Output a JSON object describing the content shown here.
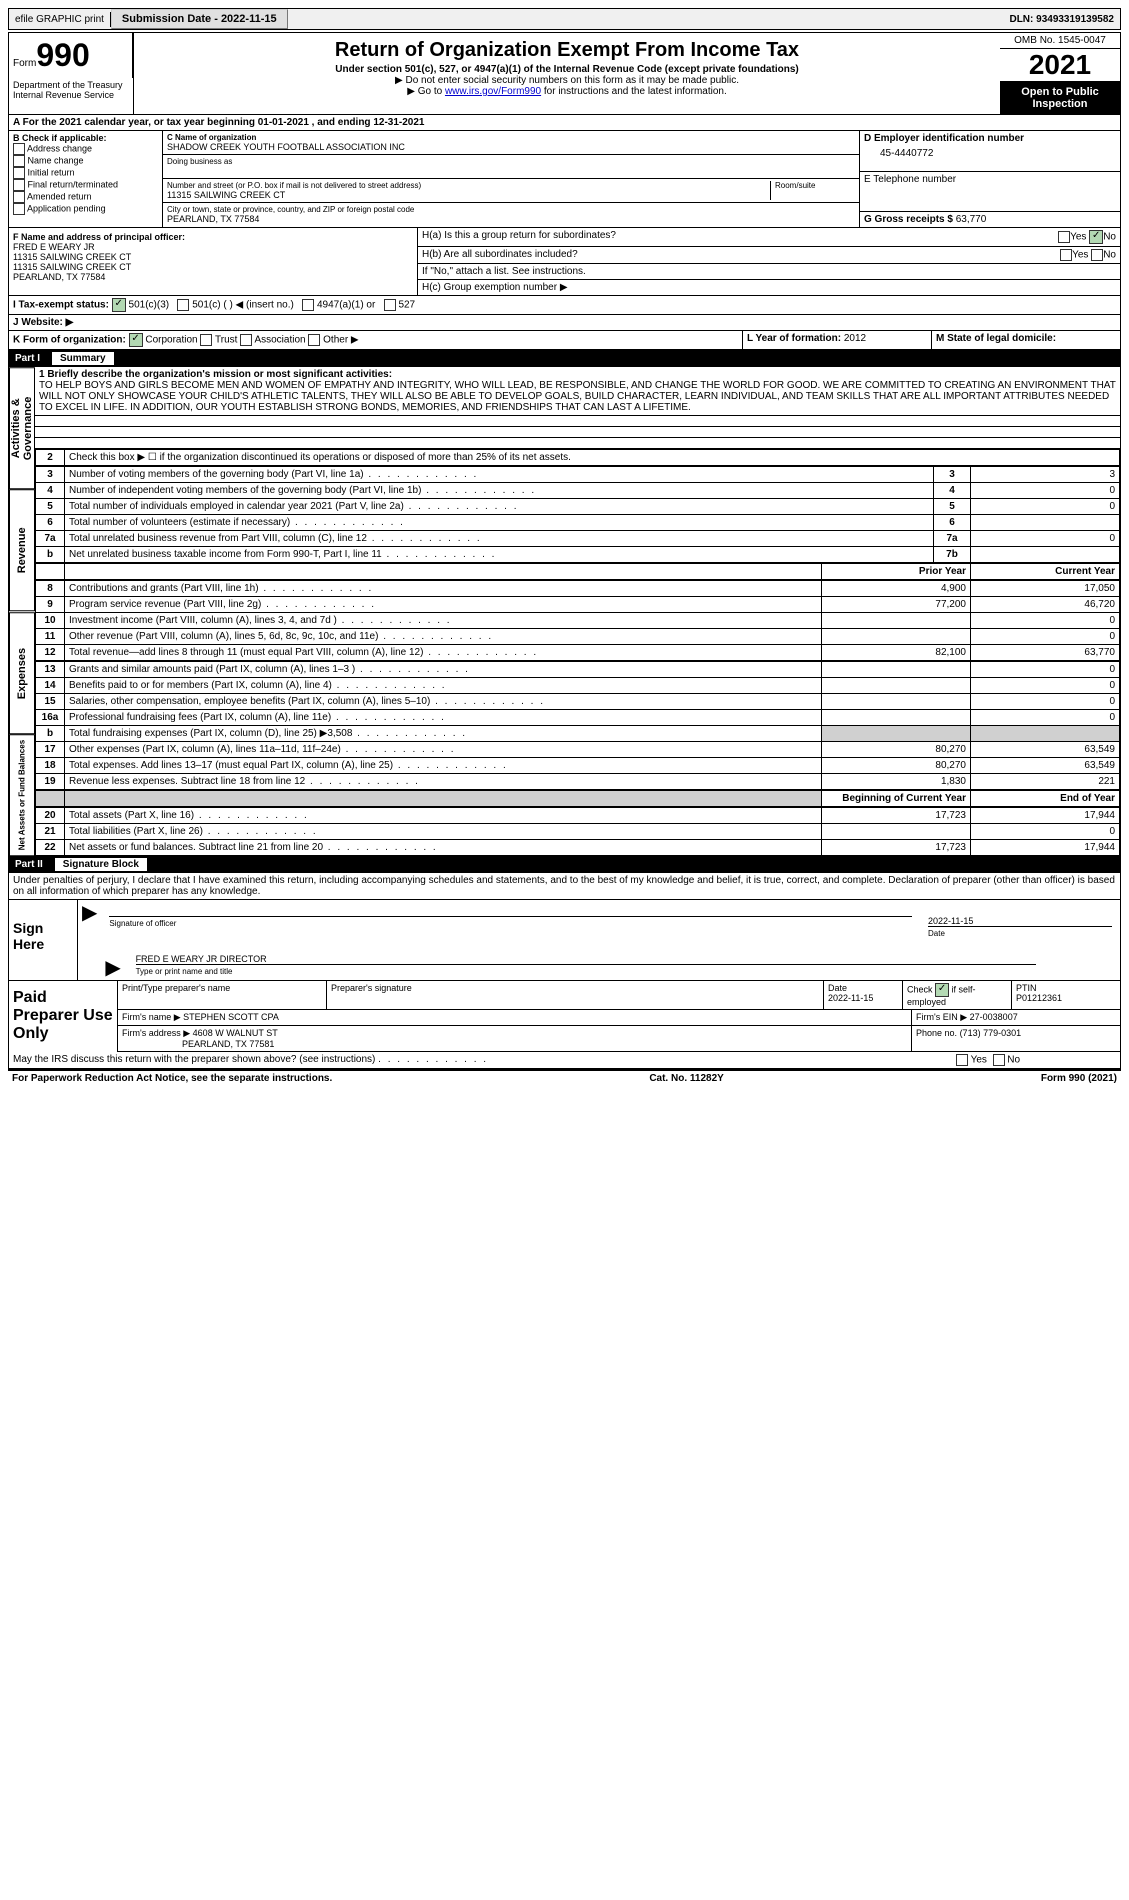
{
  "topbar": {
    "efile": "efile GRAPHIC print",
    "submission": "Submission Date - 2022-11-15",
    "dln": "DLN: 93493319139582"
  },
  "header": {
    "form_word": "Form",
    "form_num": "990",
    "dept": "Department of the Treasury\nInternal Revenue Service",
    "title": "Return of Organization Exempt From Income Tax",
    "subtitle": "Under section 501(c), 527, or 4947(a)(1) of the Internal Revenue Code (except private foundations)",
    "arrow1": "▶ Do not enter social security numbers on this form as it may be made public.",
    "arrow2_pre": "▶ Go to ",
    "arrow2_link": "www.irs.gov/Form990",
    "arrow2_post": " for instructions and the latest information.",
    "omb": "OMB No. 1545-0047",
    "year": "2021",
    "inspection": "Open to Public Inspection"
  },
  "lineA": "A For the 2021 calendar year, or tax year beginning 01-01-2021   , and ending 12-31-2021",
  "sectionB": {
    "label": "B Check if applicable:",
    "items": [
      "Address change",
      "Name change",
      "Initial return",
      "Final return/terminated",
      "Amended return",
      "Application pending"
    ]
  },
  "sectionC": {
    "name_label": "C Name of organization",
    "name": "SHADOW CREEK YOUTH FOOTBALL ASSOCIATION INC",
    "dba_label": "Doing business as",
    "addr_label": "Number and street (or P.O. box if mail is not delivered to street address)",
    "addr": "11315 SAILWING CREEK CT",
    "room_label": "Room/suite",
    "city_label": "City or town, state or province, country, and ZIP or foreign postal code",
    "city": "PEARLAND, TX  77584"
  },
  "sectionD": {
    "label": "D Employer identification number",
    "value": "45-4440772"
  },
  "sectionE": {
    "label": "E Telephone number"
  },
  "sectionG": {
    "label": "G Gross receipts $",
    "value": "63,770"
  },
  "sectionF": {
    "label": "F  Name and address of principal officer:",
    "name": "FRED E WEARY JR",
    "addr1": "11315 SAILWING CREEK CT",
    "addr2": "11315 SAILWING CREEK CT",
    "city": "PEARLAND, TX  77584"
  },
  "sectionH": {
    "ha": "H(a)  Is this a group return for subordinates?",
    "ha_yes": "Yes",
    "ha_no": "No",
    "hb": "H(b)  Are all subordinates included?",
    "hb_yes": "Yes",
    "hb_no": "No",
    "hb_note": "If \"No,\" attach a list. See instructions.",
    "hc": "H(c)  Group exemption number ▶"
  },
  "sectionI": {
    "label": "I   Tax-exempt status:",
    "opt1": "501(c)(3)",
    "opt2": "501(c) (  ) ◀ (insert no.)",
    "opt3": "4947(a)(1) or",
    "opt4": "527"
  },
  "sectionJ": {
    "label": "J   Website: ▶"
  },
  "sectionK": {
    "label": "K Form of organization:",
    "corp": "Corporation",
    "trust": "Trust",
    "assoc": "Association",
    "other": "Other ▶"
  },
  "sectionL": {
    "label": "L Year of formation:",
    "value": "2012"
  },
  "sectionM": {
    "label": "M State of legal domicile:"
  },
  "parts": {
    "p1": "Part I",
    "p1_title": "Summary",
    "p2": "Part II",
    "p2_title": "Signature Block"
  },
  "vert_labels": {
    "gov": "Activities & Governance",
    "rev": "Revenue",
    "exp": "Expenses",
    "net": "Net Assets or Fund Balances"
  },
  "summary": {
    "l1_label": "1  Briefly describe the organization's mission or most significant activities:",
    "l1_text": "TO HELP BOYS AND GIRLS BECOME MEN AND WOMEN OF EMPATHY AND INTEGRITY, WHO WILL LEAD, BE RESPONSIBLE, AND CHANGE THE WORLD FOR GOOD. WE ARE COMMITTED TO CREATING AN ENVIRONMENT THAT WILL NOT ONLY SHOWCASE YOUR CHILD'S ATHLETIC TALENTS, THEY WILL ALSO BE ABLE TO DEVELOP GOALS, BUILD CHARACTER, LEARN INDIVIDUAL, AND TEAM SKILLS THAT ARE ALL IMPORTANT ATTRIBUTES NEEDED TO EXCEL IN LIFE. IN ADDITION, OUR YOUTH ESTABLISH STRONG BONDS, MEMORIES, AND FRIENDSHIPS THAT CAN LAST A LIFETIME.",
    "l2": "Check this box ▶ ☐ if the organization discontinued its operations or disposed of more than 25% of its net assets.",
    "rows_gov": [
      {
        "n": "3",
        "d": "Number of voting members of the governing body (Part VI, line 1a)",
        "c": "3",
        "v": "3"
      },
      {
        "n": "4",
        "d": "Number of independent voting members of the governing body (Part VI, line 1b)",
        "c": "4",
        "v": "0"
      },
      {
        "n": "5",
        "d": "Total number of individuals employed in calendar year 2021 (Part V, line 2a)",
        "c": "5",
        "v": "0"
      },
      {
        "n": "6",
        "d": "Total number of volunteers (estimate if necessary)",
        "c": "6",
        "v": ""
      },
      {
        "n": "7a",
        "d": "Total unrelated business revenue from Part VIII, column (C), line 12",
        "c": "7a",
        "v": "0"
      },
      {
        "n": "b",
        "d": "Net unrelated business taxable income from Form 990-T, Part I, line 11",
        "c": "7b",
        "v": ""
      }
    ],
    "col_prior": "Prior Year",
    "col_current": "Current Year",
    "rows_rev": [
      {
        "n": "8",
        "d": "Contributions and grants (Part VIII, line 1h)",
        "p": "4,900",
        "c": "17,050"
      },
      {
        "n": "9",
        "d": "Program service revenue (Part VIII, line 2g)",
        "p": "77,200",
        "c": "46,720"
      },
      {
        "n": "10",
        "d": "Investment income (Part VIII, column (A), lines 3, 4, and 7d )",
        "p": "",
        "c": "0"
      },
      {
        "n": "11",
        "d": "Other revenue (Part VIII, column (A), lines 5, 6d, 8c, 9c, 10c, and 11e)",
        "p": "",
        "c": "0"
      },
      {
        "n": "12",
        "d": "Total revenue—add lines 8 through 11 (must equal Part VIII, column (A), line 12)",
        "p": "82,100",
        "c": "63,770"
      }
    ],
    "rows_exp": [
      {
        "n": "13",
        "d": "Grants and similar amounts paid (Part IX, column (A), lines 1–3 )",
        "p": "",
        "c": "0"
      },
      {
        "n": "14",
        "d": "Benefits paid to or for members (Part IX, column (A), line 4)",
        "p": "",
        "c": "0"
      },
      {
        "n": "15",
        "d": "Salaries, other compensation, employee benefits (Part IX, column (A), lines 5–10)",
        "p": "",
        "c": "0"
      },
      {
        "n": "16a",
        "d": "Professional fundraising fees (Part IX, column (A), line 11e)",
        "p": "",
        "c": "0"
      },
      {
        "n": "b",
        "d": "Total fundraising expenses (Part IX, column (D), line 25) ▶3,508",
        "p": "shaded",
        "c": "shaded"
      },
      {
        "n": "17",
        "d": "Other expenses (Part IX, column (A), lines 11a–11d, 11f–24e)",
        "p": "80,270",
        "c": "63,549"
      },
      {
        "n": "18",
        "d": "Total expenses. Add lines 13–17 (must equal Part IX, column (A), line 25)",
        "p": "80,270",
        "c": "63,549"
      },
      {
        "n": "19",
        "d": "Revenue less expenses. Subtract line 18 from line 12",
        "p": "1,830",
        "c": "221"
      }
    ],
    "col_begin": "Beginning of Current Year",
    "col_end": "End of Year",
    "rows_net": [
      {
        "n": "20",
        "d": "Total assets (Part X, line 16)",
        "p": "17,723",
        "c": "17,944"
      },
      {
        "n": "21",
        "d": "Total liabilities (Part X, line 26)",
        "p": "",
        "c": "0"
      },
      {
        "n": "22",
        "d": "Net assets or fund balances. Subtract line 21 from line 20",
        "p": "17,723",
        "c": "17,944"
      }
    ]
  },
  "sig": {
    "penalty": "Under penalties of perjury, I declare that I have examined this return, including accompanying schedules and statements, and to the best of my knowledge and belief, it is true, correct, and complete. Declaration of preparer (other than officer) is based on all information of which preparer has any knowledge.",
    "sign_here": "Sign Here",
    "sig_officer": "Signature of officer",
    "date_label": "Date",
    "date": "2022-11-15",
    "name": "FRED E WEARY JR  DIRECTOR",
    "name_label": "Type or print name and title"
  },
  "paid": {
    "label": "Paid Preparer Use Only",
    "h1": "Print/Type preparer's name",
    "h2": "Preparer's signature",
    "h3": "Date",
    "h3v": "2022-11-15",
    "h4": "Check ☑ if self-employed",
    "h5": "PTIN",
    "h5v": "P01212361",
    "firm_name_l": "Firm's name    ▶",
    "firm_name": "STEPHEN SCOTT CPA",
    "firm_ein_l": "Firm's EIN ▶",
    "firm_ein": "27-0038007",
    "firm_addr_l": "Firm's address ▶",
    "firm_addr": "4608 W WALNUT ST",
    "firm_city": "PEARLAND, TX  77581",
    "phone_l": "Phone no.",
    "phone": "(713) 779-0301"
  },
  "discuss": {
    "q": "May the IRS discuss this return with the preparer shown above? (see instructions)",
    "yes": "Yes",
    "no": "No"
  },
  "footer": {
    "left": "For Paperwork Reduction Act Notice, see the separate instructions.",
    "mid": "Cat. No. 11282Y",
    "right": "Form 990 (2021)"
  }
}
